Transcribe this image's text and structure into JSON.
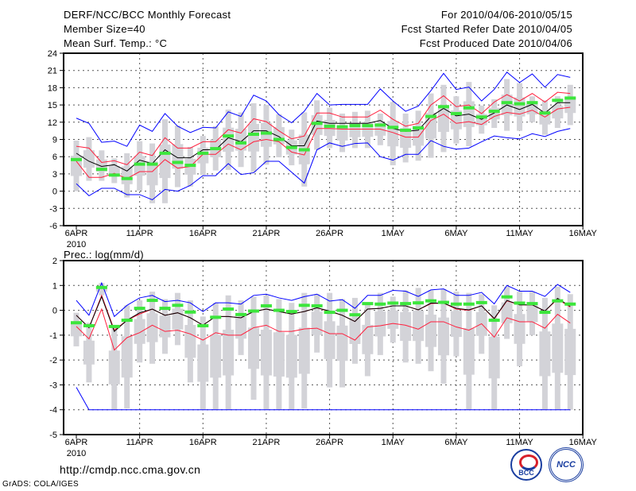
{
  "header": {
    "title": "DERF/NCC/BCC Monthly Forecast",
    "member_size": "Member Size=40",
    "variable": "Mean Surf. Temp.: °C",
    "period": "For 2010/04/06-2010/05/15",
    "start_date": "Fcst Started Refer Date 2010/04/05",
    "produced_date": "Fcst Produced Date 2010/04/06"
  },
  "footer": {
    "url": "http://cmdp.ncc.cma.gov.cn",
    "credit": "GrADS: COLA/IGES",
    "logo_left": "BCC",
    "logo_right": "NCC"
  },
  "colors": {
    "obs": "#3ce63c",
    "range": "#d3d3d8",
    "mean": "#000000",
    "spread": "#ff1e3c",
    "extreme": "#0000ff",
    "grid": "#555555"
  },
  "chart_data": [
    {
      "type": "line",
      "title": "Mean Surf. Temp.: °C",
      "xlabel": "",
      "ylabel": "°C",
      "x_tick_labels": [
        "6APR",
        "11APR",
        "16APR",
        "21APR",
        "26APR",
        "1MAY",
        "6MAY",
        "11MAY",
        "16MAY"
      ],
      "x_tick_days": [
        0,
        5,
        10,
        15,
        20,
        25,
        30,
        35,
        40
      ],
      "x_year_label": "2010",
      "yticks": [
        -6,
        -3,
        0,
        3,
        6,
        9,
        12,
        15,
        18,
        21,
        24
      ],
      "ylim": [
        -6,
        24
      ],
      "grid": true,
      "series": [
        {
          "name": "mean",
          "values": [
            6.6,
            5.2,
            4.3,
            4.6,
            3.5,
            5.4,
            4.8,
            7.2,
            5.8,
            5.8,
            7.2,
            7.2,
            9.3,
            8.6,
            10.5,
            10.5,
            9.5,
            7.9,
            7.9,
            12.2,
            11.8,
            11.8,
            11.8,
            11.8,
            12.3,
            10.9,
            10.4,
            10.6,
            13.0,
            14.4,
            13.1,
            13.4,
            12.5,
            13.6,
            15.0,
            14.2,
            15.1,
            13.6,
            15.4,
            15.4
          ]
        },
        {
          "name": "upper",
          "values": [
            7.8,
            7.5,
            5.0,
            5.3,
            4.6,
            6.8,
            6.2,
            9.3,
            7.5,
            7.5,
            8.6,
            8.6,
            10.7,
            10.1,
            12.6,
            12.1,
            10.5,
            9.1,
            9.6,
            13.6,
            13.6,
            12.9,
            12.9,
            12.9,
            14.1,
            12.5,
            11.3,
            11.8,
            15.0,
            16.6,
            14.7,
            15.0,
            13.5,
            15.5,
            16.8,
            15.7,
            17.0,
            15.5,
            17.2,
            17.0
          ]
        },
        {
          "name": "lower",
          "values": [
            5.2,
            2.4,
            2.4,
            3.1,
            2.2,
            3.4,
            3.4,
            5.5,
            4.0,
            4.3,
            6.4,
            6.4,
            8.2,
            7.2,
            8.6,
            9.0,
            8.6,
            6.8,
            6.3,
            10.9,
            10.9,
            10.8,
            10.8,
            10.8,
            10.8,
            10.2,
            9.4,
            9.4,
            12.3,
            13.4,
            11.8,
            12.1,
            11.6,
            13.0,
            13.7,
            13.4,
            14.1,
            12.9,
            14.3,
            14.6
          ]
        },
        {
          "name": "max",
          "values": [
            12.7,
            11.8,
            8.5,
            8.7,
            7.8,
            11.5,
            10.4,
            13.5,
            11.3,
            10.2,
            11.1,
            11.0,
            13.8,
            13.0,
            16.7,
            15.7,
            13.3,
            11.9,
            13.9,
            17.0,
            15.0,
            15.1,
            15.1,
            15.1,
            17.8,
            15.7,
            13.9,
            14.8,
            17.5,
            20.5,
            17.7,
            18.1,
            15.7,
            17.7,
            20.7,
            18.9,
            20.4,
            18.1,
            20.3,
            19.8
          ]
        },
        {
          "name": "min",
          "values": [
            1.3,
            -0.8,
            0.5,
            0.5,
            -0.6,
            -0.6,
            -1.5,
            0.3,
            0.0,
            1.0,
            2.7,
            2.7,
            4.8,
            2.9,
            3.2,
            5.2,
            5.2,
            3.3,
            1.4,
            7.2,
            8.4,
            7.8,
            8.3,
            8.4,
            6.0,
            5.4,
            6.4,
            6.4,
            8.8,
            7.8,
            7.3,
            7.5,
            8.6,
            9.6,
            9.3,
            9.1,
            10.0,
            9.5,
            10.4,
            10.9
          ]
        },
        {
          "name": "observed",
          "values": [
            5.5,
            null,
            3.8,
            2.8,
            2.2,
            4.7,
            4.7,
            6.6,
            5.0,
            4.5,
            6.6,
            7.4,
            9.6,
            8.4,
            9.9,
            10.1,
            9.0,
            7.6,
            7.2,
            11.8,
            11.3,
            11.2,
            11.4,
            11.4,
            11.5,
            11.1,
            10.6,
            11.0,
            13.0,
            14.7,
            13.5,
            14.5,
            12.9,
            13.9,
            15.4,
            15.2,
            15.4,
            13.6,
            15.8,
            16.2
          ]
        }
      ],
      "member_range": [
        [
          0,
          8.8
        ],
        [
          1.8,
          9.4
        ],
        [
          1.8,
          7.1
        ],
        [
          1.4,
          5.7
        ],
        [
          -1.1,
          6.6
        ],
        [
          0.1,
          8.7
        ],
        [
          -2.1,
          8.3
        ],
        [
          -2.1,
          12.5
        ],
        [
          0.7,
          11.4
        ],
        [
          0.8,
          7.7
        ],
        [
          2.8,
          9.6
        ],
        [
          3.6,
          11.3
        ],
        [
          3.7,
          14.2
        ],
        [
          4.2,
          13.7
        ],
        [
          3.3,
          15.3
        ],
        [
          4.6,
          15.0
        ],
        [
          5.9,
          13.4
        ],
        [
          4.5,
          10.7
        ],
        [
          0.8,
          13.7
        ],
        [
          7.2,
          15.8
        ],
        [
          7.5,
          14.5
        ],
        [
          6.8,
          13.5
        ],
        [
          7.5,
          13.8
        ],
        [
          7.5,
          14.0
        ],
        [
          8.0,
          13.5
        ],
        [
          4.5,
          15.5
        ],
        [
          5.0,
          13.5
        ],
        [
          5.3,
          14.0
        ],
        [
          5.8,
          17.0
        ],
        [
          6.8,
          18.5
        ],
        [
          8.3,
          16.5
        ],
        [
          7.8,
          19.0
        ],
        [
          10.0,
          14.9
        ],
        [
          11.0,
          16.0
        ],
        [
          10.5,
          19.5
        ],
        [
          10.5,
          18.8
        ],
        [
          12.0,
          16.5
        ],
        [
          9.8,
          15.8
        ],
        [
          11.0,
          16.5
        ],
        [
          11.5,
          18.5
        ]
      ]
    },
    {
      "type": "line",
      "title": "Prec.: log(mm/d)",
      "xlabel": "",
      "ylabel": "log(mm/d)",
      "x_tick_labels": [
        "6APR",
        "11APR",
        "16APR",
        "21APR",
        "26APR",
        "1MAY",
        "6MAY",
        "11MAY",
        "16MAY"
      ],
      "x_tick_days": [
        0,
        5,
        10,
        15,
        20,
        25,
        30,
        35,
        40
      ],
      "x_year_label": "2010",
      "yticks": [
        -5,
        -4,
        -3,
        -2,
        -1,
        0,
        1,
        2
      ],
      "ylim": [
        -5,
        2
      ],
      "grid": true,
      "series": [
        {
          "name": "mean",
          "values": [
            -0.2,
            -0.7,
            0.55,
            -0.85,
            -0.4,
            -0.1,
            0.05,
            -0.2,
            -0.1,
            -0.3,
            -0.6,
            -0.25,
            -0.25,
            -0.3,
            -0.05,
            0.05,
            -0.05,
            -0.15,
            -0.05,
            0.1,
            -0.03,
            -0.2,
            -0.45,
            0.05,
            0.08,
            0.18,
            0.18,
            0.02,
            0.29,
            0.29,
            0.08,
            0.02,
            0.18,
            -0.33,
            0.4,
            0.22,
            0.22,
            -0.03,
            0.48,
            0.16
          ]
        },
        {
          "name": "upper",
          "values": [
            -0.2,
            -0.7,
            0.6,
            -0.8,
            -0.4,
            -0.15,
            0.05,
            -0.2,
            -0.1,
            -0.3,
            -0.6,
            -0.25,
            -0.25,
            -0.3,
            -0.05,
            0.05,
            -0.05,
            -0.15,
            -0.05,
            0.1,
            -0.05,
            -0.2,
            -0.45,
            0.05,
            0.08,
            0.18,
            0.18,
            0.02,
            0.27,
            0.29,
            0.05,
            0.0,
            0.18,
            -0.35,
            0.38,
            0.22,
            0.22,
            -0.03,
            0.45,
            0.13
          ]
        },
        {
          "name": "lower",
          "values": [
            -0.65,
            -1.15,
            0.05,
            -1.6,
            -1.1,
            -0.9,
            -0.6,
            -0.85,
            -0.8,
            -0.95,
            -1.2,
            -0.9,
            -1.0,
            -1.0,
            -0.7,
            -0.6,
            -0.85,
            -0.85,
            -0.75,
            -0.72,
            -0.94,
            -0.94,
            -1.2,
            -0.67,
            -0.62,
            -0.53,
            -0.6,
            -0.76,
            -0.46,
            -0.46,
            -0.67,
            -0.8,
            -0.54,
            -1.08,
            -0.3,
            -0.46,
            -0.46,
            -0.72,
            -0.16,
            -0.51
          ]
        },
        {
          "name": "max",
          "values": [
            0.4,
            -0.2,
            1.1,
            -0.25,
            0.2,
            0.5,
            0.6,
            0.35,
            0.4,
            0.3,
            -0.05,
            0.3,
            0.3,
            0.25,
            0.6,
            0.65,
            0.5,
            0.4,
            0.55,
            0.65,
            0.37,
            0.43,
            0.08,
            0.6,
            0.6,
            0.8,
            0.77,
            0.56,
            0.82,
            0.86,
            0.6,
            0.6,
            0.72,
            0.26,
            1.0,
            0.77,
            0.77,
            0.56,
            1.04,
            0.72
          ]
        },
        {
          "name": "min",
          "values": [
            -3.1,
            -4,
            -4,
            -4,
            -4,
            -4,
            -4,
            -4,
            -4,
            -4,
            -4,
            -4,
            -4,
            -4,
            -4,
            -4,
            -4,
            -4,
            -4,
            -4,
            -4,
            -4,
            -4,
            -4,
            -4,
            -4,
            -4,
            -4,
            -4,
            -4,
            -4,
            -4,
            -4,
            -4,
            -4,
            -4,
            -4,
            -4,
            -4,
            -4
          ]
        },
        {
          "name": "observed",
          "values": [
            -0.5,
            -0.62,
            0.92,
            -0.65,
            -0.4,
            0.08,
            0.4,
            0.08,
            0.2,
            -0.07,
            -0.62,
            -0.28,
            0.05,
            -0.17,
            -0.03,
            0.18,
            0.0,
            -0.05,
            0.2,
            0.18,
            -0.08,
            0.0,
            -0.18,
            0.27,
            0.25,
            0.29,
            0.27,
            0.3,
            0.38,
            0.32,
            0.25,
            0.25,
            0.31,
            -0.4,
            0.54,
            0.29,
            0.27,
            -0.08,
            0.38,
            0.25
          ]
        }
      ],
      "member_range": [
        [
          -1.45,
          -0.1
        ],
        [
          -2.9,
          -0.5
        ],
        [
          0.6,
          1.1
        ],
        [
          -4,
          -0.6
        ],
        [
          -3.95,
          0.2
        ],
        [
          -2.1,
          0.4
        ],
        [
          -2.15,
          0.75
        ],
        [
          -1.75,
          0.45
        ],
        [
          -1.4,
          0.7
        ],
        [
          -2.9,
          0.4
        ],
        [
          -4,
          -0.25
        ],
        [
          -4,
          0.3
        ],
        [
          -4,
          0.6
        ],
        [
          -1.8,
          0.4
        ],
        [
          -3.6,
          0.55
        ],
        [
          -4,
          0.6
        ],
        [
          -4,
          0.45
        ],
        [
          -4,
          0.3
        ],
        [
          -3.95,
          0.7
        ],
        [
          -1.7,
          0.65
        ],
        [
          -3.1,
          0.7
        ],
        [
          -3.1,
          0.45
        ],
        [
          -2.15,
          0.5
        ],
        [
          -2.65,
          0.3
        ],
        [
          -1.8,
          0.7
        ],
        [
          -1.3,
          0.55
        ],
        [
          -2.1,
          0.8
        ],
        [
          -2.15,
          0.9
        ],
        [
          -2.45,
          0.8
        ],
        [
          -2.95,
          0.85
        ],
        [
          -1.85,
          0.75
        ],
        [
          -4,
          0.7
        ],
        [
          -1.75,
          0.65
        ],
        [
          -4,
          0.2
        ],
        [
          -1.15,
          0.95
        ],
        [
          -2.25,
          0.75
        ],
        [
          -1.0,
          0.75
        ],
        [
          -4,
          0.5
        ],
        [
          -4,
          0.95
        ],
        [
          -4,
          0.65
        ]
      ]
    }
  ]
}
